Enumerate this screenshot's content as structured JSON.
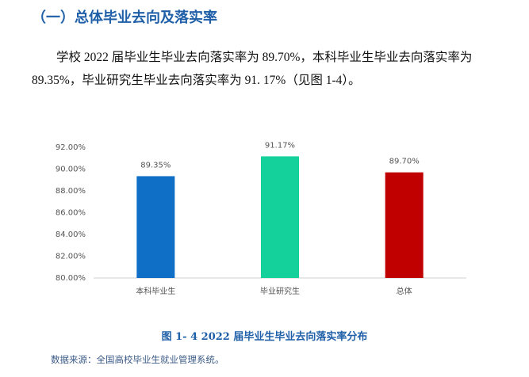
{
  "heading": "（一）总体毕业去向及落实率",
  "paragraph": "学校 2022 届毕业生毕业去向落实率为 89.70%，本科毕业生毕业去向落实率为 89.35%，毕业研究生毕业去向落实率为 91. 17%（见图 1-4）。",
  "chart_data": {
    "type": "bar",
    "categories": [
      "本科毕业生",
      "毕业研究生",
      "总体"
    ],
    "values": [
      89.35,
      91.17,
      89.7
    ],
    "value_labels": [
      "89.35%",
      "91.17%",
      "89.70%"
    ],
    "colors": [
      "#0f6fc6",
      "#14d19b",
      "#c00000"
    ],
    "ylim": [
      80,
      92
    ],
    "yticks": [
      {
        "value": 80,
        "label": "80.00%"
      },
      {
        "value": 82,
        "label": "82.00%"
      },
      {
        "value": 84,
        "label": "84.00%"
      },
      {
        "value": 86,
        "label": "86.00%"
      },
      {
        "value": 88,
        "label": "88.00%"
      },
      {
        "value": 90,
        "label": "90.00%"
      },
      {
        "value": 92,
        "label": "92.00%"
      }
    ],
    "grid": false
  },
  "caption": "图 1- 4   2022 届毕业生毕业去向落实率分布",
  "source": "数据来源：全国高校毕业生就业管理系统。"
}
